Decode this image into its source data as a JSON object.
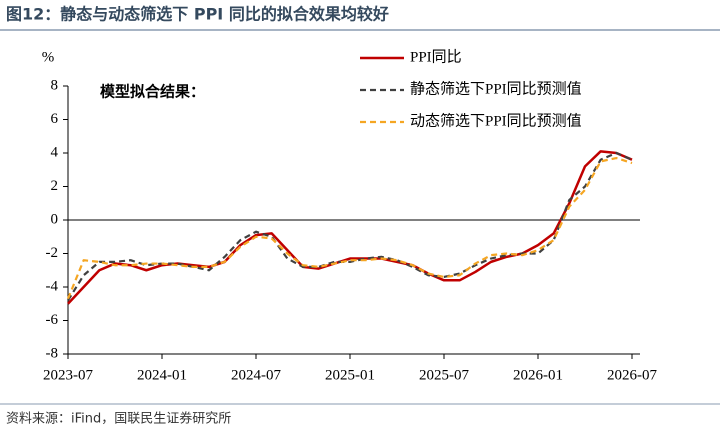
{
  "header": {
    "title": "图12：静态与动态筛选下 PPI 同比的拟合效果均较好"
  },
  "chart_data": {
    "type": "line",
    "y_label": "%",
    "annotation": "模型拟合结果：",
    "categories": [
      "2023-07",
      null,
      null,
      null,
      null,
      null,
      "2024-01",
      null,
      null,
      null,
      null,
      null,
      "2024-07",
      null,
      null,
      null,
      null,
      null,
      "2025-01",
      null,
      null,
      null,
      null,
      null,
      "2025-07",
      null,
      null,
      null,
      null,
      null,
      "2026-01",
      null,
      null,
      null,
      null,
      null,
      "2026-07"
    ],
    "series": [
      {
        "name": "PPI同比",
        "color": "#c00000",
        "values": [
          -5.0,
          -4.0,
          -3.0,
          -2.6,
          -2.7,
          -3.0,
          -2.7,
          -2.6,
          -2.7,
          -2.8,
          -2.5,
          -1.5,
          -0.9,
          -0.8,
          -1.8,
          -2.8,
          -2.9,
          -2.6,
          -2.3,
          -2.3,
          -2.3,
          -2.5,
          -2.7,
          -3.2,
          -3.6,
          -3.6,
          -3.1,
          -2.5,
          -2.2,
          -2.0,
          -1.5,
          -0.8,
          1.0,
          3.2,
          4.1,
          4.0,
          3.6
        ]
      },
      {
        "name": "静态筛选下PPI同比预测值",
        "color": "#404040",
        "values": [
          -4.8,
          -3.3,
          -2.5,
          -2.5,
          -2.4,
          -2.7,
          -2.6,
          -2.6,
          -2.8,
          -3.0,
          -2.2,
          -1.2,
          -0.7,
          -1.0,
          -2.3,
          -2.8,
          -2.8,
          -2.5,
          -2.5,
          -2.3,
          -2.2,
          -2.4,
          -2.8,
          -3.3,
          -3.4,
          -3.2,
          -2.7,
          -2.3,
          -2.1,
          -2.0,
          -2.0,
          -1.2,
          1.2,
          2.0,
          3.6,
          4.0,
          3.6
        ]
      },
      {
        "name": "动态筛选下PPI同比预测值",
        "color": "#f5a623",
        "values": [
          -4.7,
          -2.4,
          -2.5,
          -2.7,
          -2.7,
          -2.6,
          -2.6,
          -2.7,
          -2.8,
          -2.8,
          -2.5,
          -1.6,
          -1.0,
          -1.1,
          -2.0,
          -2.7,
          -2.8,
          -2.6,
          -2.4,
          -2.4,
          -2.3,
          -2.4,
          -2.7,
          -3.2,
          -3.4,
          -3.3,
          -2.6,
          -2.1,
          -2.0,
          -2.1,
          -1.8,
          -1.2,
          0.8,
          1.8,
          3.5,
          3.7,
          3.4
        ]
      }
    ],
    "ylim": [
      -8,
      8
    ],
    "yticks": [
      -8,
      -6,
      -4,
      -2,
      0,
      2,
      4,
      6,
      8
    ],
    "legend": "upper right"
  },
  "source": "资料来源：iFind，国联民生证券研究所"
}
